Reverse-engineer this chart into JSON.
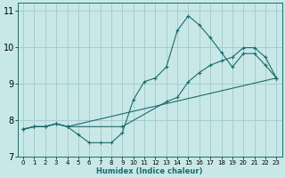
{
  "xlabel": "Humidex (Indice chaleur)",
  "xlim": [
    -0.5,
    23.5
  ],
  "ylim": [
    7,
    11.2
  ],
  "yticks": [
    7,
    8,
    9,
    10,
    11
  ],
  "xticks": [
    0,
    1,
    2,
    3,
    4,
    5,
    6,
    7,
    8,
    9,
    10,
    11,
    12,
    13,
    14,
    15,
    16,
    17,
    18,
    19,
    20,
    21,
    22,
    23
  ],
  "bg_color": "#c8e8e8",
  "grid_color": "#a8cccc",
  "line_color": "#1a6b6b",
  "line1_x": [
    0,
    1,
    2,
    3,
    4,
    5,
    6,
    7,
    8,
    9,
    10,
    11,
    12,
    13,
    14,
    15,
    16,
    17,
    18,
    19,
    20,
    21,
    22,
    23
  ],
  "line1_y": [
    7.75,
    7.82,
    7.82,
    7.9,
    7.82,
    7.6,
    7.38,
    7.38,
    7.38,
    7.65,
    8.55,
    9.05,
    9.15,
    9.45,
    10.45,
    10.85,
    10.6,
    10.25,
    9.85,
    9.45,
    9.82,
    9.82,
    9.5,
    9.15
  ],
  "line2_x": [
    0,
    1,
    2,
    3,
    4,
    9,
    13,
    14,
    15,
    16,
    17,
    18,
    19,
    20,
    21,
    22,
    23
  ],
  "line2_y": [
    7.75,
    7.82,
    7.82,
    7.9,
    7.82,
    7.82,
    8.5,
    8.62,
    9.05,
    9.3,
    9.5,
    9.62,
    9.72,
    9.98,
    9.98,
    9.72,
    9.15
  ],
  "line3_x": [
    0,
    1,
    2,
    3,
    4,
    23
  ],
  "line3_y": [
    7.75,
    7.82,
    7.82,
    7.9,
    7.82,
    9.15
  ]
}
